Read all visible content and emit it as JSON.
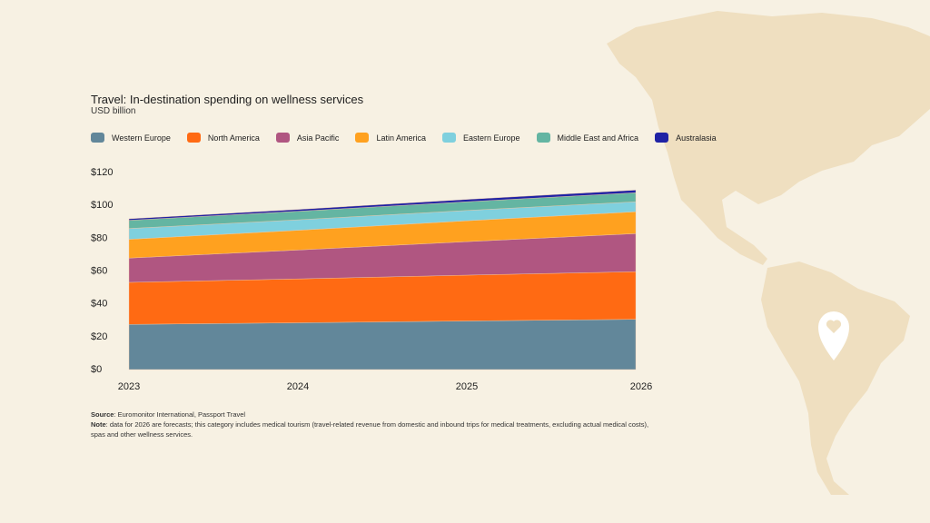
{
  "chart_data": {
    "type": "area",
    "stacked": true,
    "title": "Travel: In-destination spending on wellness services",
    "subtitle": "USD billion",
    "x": [
      "2023",
      "2024",
      "2025",
      "2026"
    ],
    "ylim": [
      0,
      120
    ],
    "yticks": [
      0,
      20,
      40,
      60,
      80,
      100,
      120
    ],
    "ytick_labels": [
      "$0",
      "$20",
      "$40",
      "$60",
      "$80",
      "$100",
      "$120"
    ],
    "grid": false,
    "legend_position": "top",
    "series": [
      {
        "name": "Western Europe",
        "color": "#62879a",
        "values": [
          27.5,
          28.5,
          29.6,
          30.6
        ]
      },
      {
        "name": "North America",
        "color": "#ff6a13",
        "values": [
          25.6,
          26.7,
          27.9,
          29.0
        ]
      },
      {
        "name": "Asia Pacific",
        "color": "#b05681",
        "values": [
          14.8,
          17.6,
          20.4,
          23.2
        ]
      },
      {
        "name": "Latin America",
        "color": "#ffa11f",
        "values": [
          11.4,
          12.0,
          12.7,
          13.3
        ]
      },
      {
        "name": "Eastern Europe",
        "color": "#7fd0de",
        "values": [
          6.6,
          6.4,
          6.3,
          6.1
        ]
      },
      {
        "name": "Middle East and Africa",
        "color": "#64b5a2",
        "values": [
          5.0,
          5.2,
          5.3,
          5.5
        ]
      },
      {
        "name": "Australasia",
        "color": "#1f22a5",
        "values": [
          0.9,
          1.1,
          1.4,
          1.6
        ]
      }
    ]
  },
  "footer": {
    "source_label": "Source",
    "source_text": ": Euromonitor International, Passport Travel",
    "note_label": "Note",
    "note_text": ": data for 2026 are forecasts; this category includes medical tourism (travel-related revenue from domestic and inbound trips for medical treatments, excluding actual medical costs), spas and other wellness services."
  },
  "colors": {
    "background": "#f7f1e3",
    "map": "#efdfc0",
    "pin": "#ffffff"
  },
  "icons": {
    "pin": "map-pin-heart-icon"
  }
}
